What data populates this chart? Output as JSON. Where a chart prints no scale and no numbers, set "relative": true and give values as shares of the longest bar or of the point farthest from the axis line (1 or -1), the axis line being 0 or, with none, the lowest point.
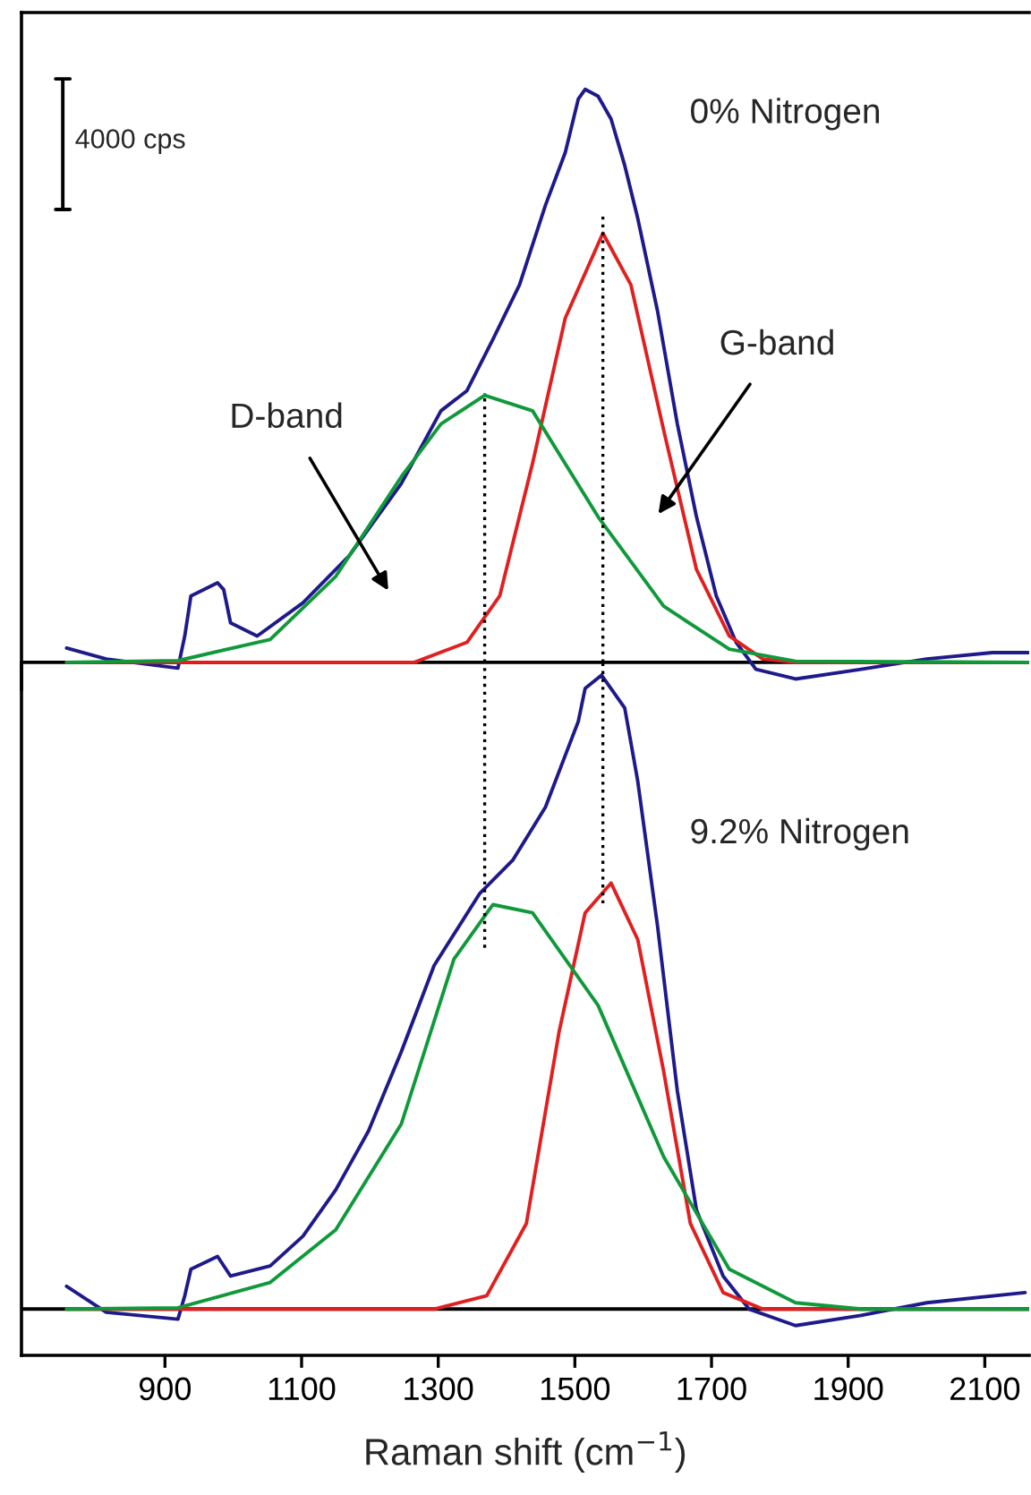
{
  "chart_data": [
    {
      "type": "line",
      "relative": true,
      "xlim": [
        690,
        2165
      ],
      "tick_labels": false,
      "grid": false,
      "legend": false,
      "annotations": [
        "4000 cps",
        "0% Nitrogen",
        "D-band",
        "G-band"
      ],
      "ref_lines": [
        {
          "axis": "x",
          "value": 1368,
          "line_style": "dotted"
        },
        {
          "axis": "x",
          "value": 1541,
          "line_style": "dotted"
        }
      ],
      "series": [
        {
          "color": "#1f1a8a",
          "x": [
            756,
            814,
            919,
            929,
            938,
            977,
            986,
            996,
            1035,
            1102,
            1169,
            1246,
            1304,
            1342,
            1381,
            1419,
            1457,
            1486,
            1505,
            1515,
            1534,
            1553,
            1573,
            1592,
            1621,
            1650,
            1678,
            1707,
            1736,
            1765,
            1823,
            1919,
            2015,
            2111,
            2164
          ],
          "values": [
            0.025,
            0.006,
            -0.01,
            0.046,
            0.116,
            0.139,
            0.127,
            0.069,
            0.046,
            0.104,
            0.185,
            0.312,
            0.439,
            0.474,
            0.566,
            0.659,
            0.798,
            0.89,
            0.983,
            1,
            0.988,
            0.948,
            0.867,
            0.775,
            0.613,
            0.416,
            0.254,
            0.116,
            0.035,
            -0.012,
            -0.029,
            -0.012,
            0.006,
            0.017,
            0.017
          ]
        },
        {
          "color": "#e02020",
          "x": [
            756,
            1265,
            1342,
            1390,
            1438,
            1486,
            1541,
            1582,
            1630,
            1678,
            1726,
            1775,
            1823,
            2164
          ],
          "values": [
            0,
            0,
            0.035,
            0.116,
            0.347,
            0.601,
            0.749,
            0.659,
            0.405,
            0.162,
            0.046,
            0.006,
            0,
            0
          ]
        },
        {
          "color": "#10993a",
          "x": [
            756,
            919,
            1054,
            1150,
            1246,
            1304,
            1368,
            1438,
            1534,
            1630,
            1726,
            1823,
            2164
          ],
          "values": [
            0,
            0.003,
            0.04,
            0.15,
            0.324,
            0.416,
            0.466,
            0.439,
            0.254,
            0.098,
            0.023,
            0.002,
            0
          ]
        }
      ]
    },
    {
      "type": "line",
      "relative": true,
      "xlim": [
        690,
        2165
      ],
      "xticks": [
        900,
        1100,
        1300,
        1500,
        1700,
        1900,
        2100
      ],
      "tick_labels": "x",
      "grid": false,
      "legend": false,
      "xlabel": "Raman shift (cm$^{−1}$)",
      "annotations": [
        "9.2% Nitrogen"
      ],
      "ref_lines": [
        {
          "axis": "x",
          "value": 1368,
          "line_style": "dotted"
        },
        {
          "axis": "x",
          "value": 1541,
          "line_style": "dotted"
        }
      ],
      "series": [
        {
          "color": "#1f1a8a",
          "x": [
            756,
            814,
            919,
            929,
            938,
            977,
            996,
            1054,
            1102,
            1150,
            1198,
            1246,
            1294,
            1361,
            1409,
            1457,
            1505,
            1515,
            1539,
            1573,
            1592,
            1621,
            1650,
            1678,
            1717,
            1755,
            1823,
            1919,
            2015,
            2159
          ],
          "values": [
            0.036,
            -0.005,
            -0.016,
            0.021,
            0.063,
            0.083,
            0.052,
            0.068,
            0.115,
            0.188,
            0.281,
            0.406,
            0.542,
            0.656,
            0.708,
            0.792,
            0.927,
            0.979,
            1,
            0.948,
            0.833,
            0.604,
            0.344,
            0.156,
            0.052,
            0,
            -0.026,
            -0.01,
            0.01,
            0.026
          ]
        },
        {
          "color": "#e02020",
          "x": [
            756,
            1294,
            1371,
            1429,
            1477,
            1515,
            1553,
            1592,
            1630,
            1669,
            1717,
            1775,
            2164
          ],
          "values": [
            0,
            0,
            0.021,
            0.135,
            0.438,
            0.625,
            0.672,
            0.583,
            0.375,
            0.135,
            0.026,
            0,
            0
          ]
        },
        {
          "color": "#10993a",
          "x": [
            756,
            919,
            1054,
            1150,
            1246,
            1323,
            1380,
            1438,
            1534,
            1630,
            1726,
            1823,
            1919,
            2164
          ],
          "values": [
            0,
            0.002,
            0.042,
            0.125,
            0.292,
            0.552,
            0.638,
            0.625,
            0.479,
            0.24,
            0.063,
            0.01,
            0,
            0
          ]
        }
      ]
    }
  ]
}
